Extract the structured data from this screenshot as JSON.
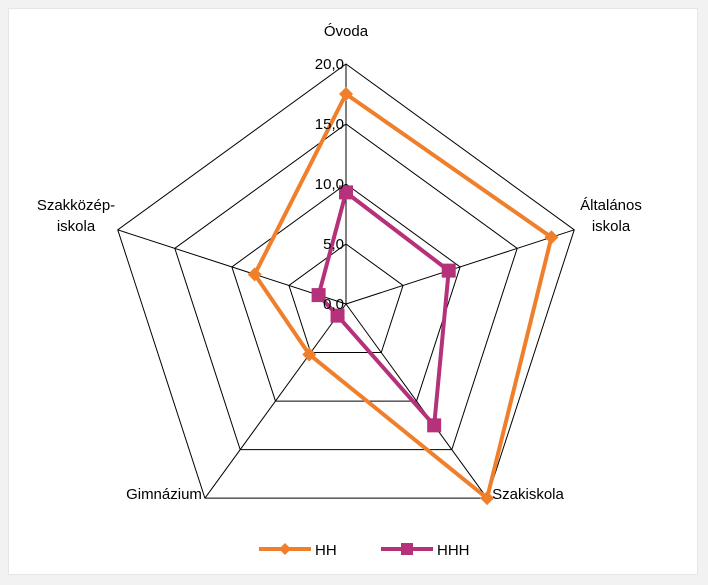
{
  "chart_data": {
    "type": "radar",
    "categories": [
      "Óvoda",
      "Általános iskola",
      "Szakiskola",
      "Gimnázium",
      "Szakközép-iskola"
    ],
    "category_lines": [
      [
        "Óvoda"
      ],
      [
        "Általános",
        "iskola"
      ],
      [
        "Szakiskola"
      ],
      [
        "Gimnázium"
      ],
      [
        "Szakközép-",
        "iskola"
      ]
    ],
    "rlim": [
      0,
      20
    ],
    "ticks": [
      "0,0",
      "5,0",
      "10,0",
      "15,0",
      "20,0"
    ],
    "tick_values": [
      0,
      5,
      10,
      15,
      20
    ],
    "series": [
      {
        "name": "HH",
        "color": "#f07f2c",
        "marker": "diamond",
        "values": [
          17.5,
          18.0,
          20.0,
          5.2,
          8.0
        ]
      },
      {
        "name": "HHH",
        "color": "#b5317a",
        "marker": "square",
        "values": [
          9.3,
          9.0,
          12.5,
          1.2,
          2.4
        ]
      }
    ],
    "legend_position": "bottom",
    "grid": true
  }
}
